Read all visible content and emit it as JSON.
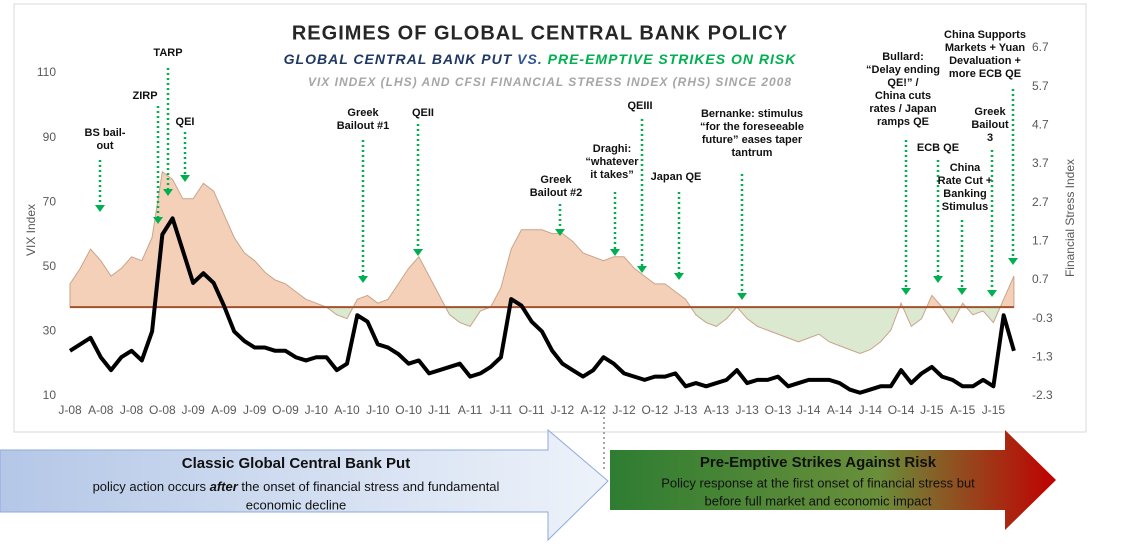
{
  "chart_data": {
    "type": "line_area",
    "title": "REGIMES OF GLOBAL CENTRAL BANK POLICY",
    "subtitle_parts": [
      "GLOBAL CENTRAL BANK PUT",
      "VS.",
      "PRE-EMPTIVE STRIKES ON RISK"
    ],
    "subtitle2": "VIX INDEX (LHS) AND CFSI FINANCIAL STRESS INDEX (RHS) SINCE 2008",
    "y_label": "VIX Index",
    "y2_label": "Financial Stress Index",
    "categories": [
      "J-08",
      null,
      null,
      "A-08",
      null,
      null,
      "J-08",
      null,
      null,
      "O-08",
      null,
      null,
      "J-09",
      null,
      null,
      "A-09",
      null,
      null,
      "J-09",
      null,
      null,
      "O-09",
      null,
      null,
      "J-10",
      null,
      null,
      "A-10",
      null,
      null,
      "J-10",
      null,
      null,
      "O-10",
      null,
      null,
      "J-11",
      null,
      null,
      "A-11",
      null,
      null,
      "J-11",
      null,
      null,
      "O-11",
      null,
      null,
      "J-12",
      null,
      null,
      "A-12",
      null,
      null,
      "J-12",
      null,
      null,
      "O-12",
      null,
      null,
      "J-13",
      null,
      null,
      "A-13",
      null,
      null,
      "J-13",
      null,
      null,
      "O-13",
      null,
      null,
      "J-14",
      null,
      null,
      "A-14",
      null,
      null,
      "J-14",
      null,
      null,
      "O-14",
      null,
      null,
      "J-15",
      null,
      null,
      "A-15",
      null,
      null,
      "J-15",
      null,
      null
    ],
    "series": [
      {
        "name": "VIX Index",
        "type": "line",
        "color": "#000000",
        "values": [
          24,
          26,
          28,
          22,
          18,
          22,
          24,
          21,
          30,
          60,
          65,
          55,
          45,
          48,
          45,
          38,
          30,
          27,
          25,
          25,
          24,
          24,
          22,
          21,
          22,
          22,
          18,
          20,
          35,
          33,
          26,
          25,
          23,
          20,
          21,
          17,
          18,
          19,
          20,
          16,
          17,
          19,
          22,
          40,
          38,
          33,
          30,
          24,
          20,
          18,
          16,
          18,
          22,
          20,
          17,
          16,
          15,
          16,
          16,
          17,
          13,
          14,
          13,
          14,
          15,
          18,
          14,
          15,
          15,
          16,
          13,
          14,
          15,
          15,
          15,
          14,
          12,
          11,
          12,
          13,
          13,
          18,
          14,
          17,
          19,
          16,
          15,
          13,
          13,
          15,
          13,
          35,
          24
        ]
      },
      {
        "name": "CFSI Financial Stress Index",
        "type": "area",
        "axis": "y2",
        "color": "#f5d0b8",
        "negative_color": "#dbe9d0",
        "values": [
          0.6,
          1.0,
          1.5,
          1.2,
          0.8,
          1.0,
          1.3,
          1.2,
          1.8,
          3.5,
          3.3,
          2.8,
          2.8,
          3.2,
          3.0,
          2.4,
          1.8,
          1.4,
          1.2,
          0.9,
          0.7,
          0.6,
          0.4,
          0.2,
          0.1,
          0.0,
          -0.2,
          -0.3,
          0.2,
          0.3,
          0.1,
          0.2,
          0.6,
          1.0,
          1.3,
          0.8,
          0.3,
          -0.2,
          -0.4,
          -0.5,
          -0.1,
          0.0,
          0.5,
          1.5,
          2.0,
          2.0,
          2.0,
          1.9,
          1.9,
          1.7,
          1.4,
          1.3,
          1.2,
          1.3,
          1.3,
          1.0,
          0.8,
          0.6,
          0.6,
          0.4,
          0.2,
          -0.2,
          -0.4,
          -0.5,
          -0.3,
          0.0,
          -0.3,
          -0.5,
          -0.6,
          -0.7,
          -0.8,
          -0.9,
          -0.8,
          -0.7,
          -0.9,
          -1.0,
          -1.1,
          -1.2,
          -1.1,
          -0.9,
          -0.6,
          0.1,
          -0.5,
          -0.3,
          0.3,
          0.0,
          -0.4,
          0.1,
          -0.2,
          -0.1,
          -0.4,
          0.2,
          0.8
        ]
      }
    ],
    "ylim": [
      10,
      110
    ],
    "yticks": [
      10,
      30,
      50,
      70,
      90,
      110
    ],
    "y2lim": [
      -2.3,
      6.7
    ],
    "y2ticks": [
      -2.3,
      -1.3,
      -0.3,
      0.7,
      1.7,
      2.7,
      3.7,
      4.7,
      5.7,
      6.7
    ],
    "annotations": [
      {
        "lines": [
          "BS bail-",
          "out"
        ]
      },
      {
        "lines": [
          "ZIRP"
        ]
      },
      {
        "lines": [
          "TARP"
        ]
      },
      {
        "lines": [
          "QEI"
        ]
      },
      {
        "lines": [
          "Greek",
          "Bailout #1"
        ]
      },
      {
        "lines": [
          "QEII"
        ]
      },
      {
        "lines": [
          "Greek",
          "Bailout #2"
        ]
      },
      {
        "lines": [
          "Draghi:",
          "“whatever",
          "it takes”"
        ]
      },
      {
        "lines": [
          "QEIII"
        ]
      },
      {
        "lines": [
          "Japan QE"
        ]
      },
      {
        "lines": [
          "Bernanke: stimulus",
          "“for the foreseeable",
          "future” eases taper",
          "tantrum"
        ]
      },
      {
        "lines": [
          "Bullard:",
          "“Delay ending",
          "QE!” /",
          "China cuts",
          "rates / Japan",
          "ramps QE"
        ]
      },
      {
        "lines": [
          "ECB QE"
        ]
      },
      {
        "lines": [
          "China",
          "Rate Cut +",
          "Banking",
          "Stimulus"
        ]
      },
      {
        "lines": [
          "Greek",
          "Bailout",
          "3"
        ]
      },
      {
        "lines": [
          "China Supports",
          "Markets + Yuan",
          "Devaluation +",
          "more ECB QE"
        ]
      }
    ]
  },
  "regimes": [
    {
      "title": "Classic Global Central Bank Put",
      "description_parts": [
        "policy action occurs ",
        "after",
        " the onset of financial stress and fundamental",
        "economic decline"
      ]
    },
    {
      "title": "Pre-Emptive Strikes Against Risk",
      "description_lines": [
        "Policy response at the first onset of financial stress but",
        "before full market and economic impact"
      ]
    }
  ]
}
